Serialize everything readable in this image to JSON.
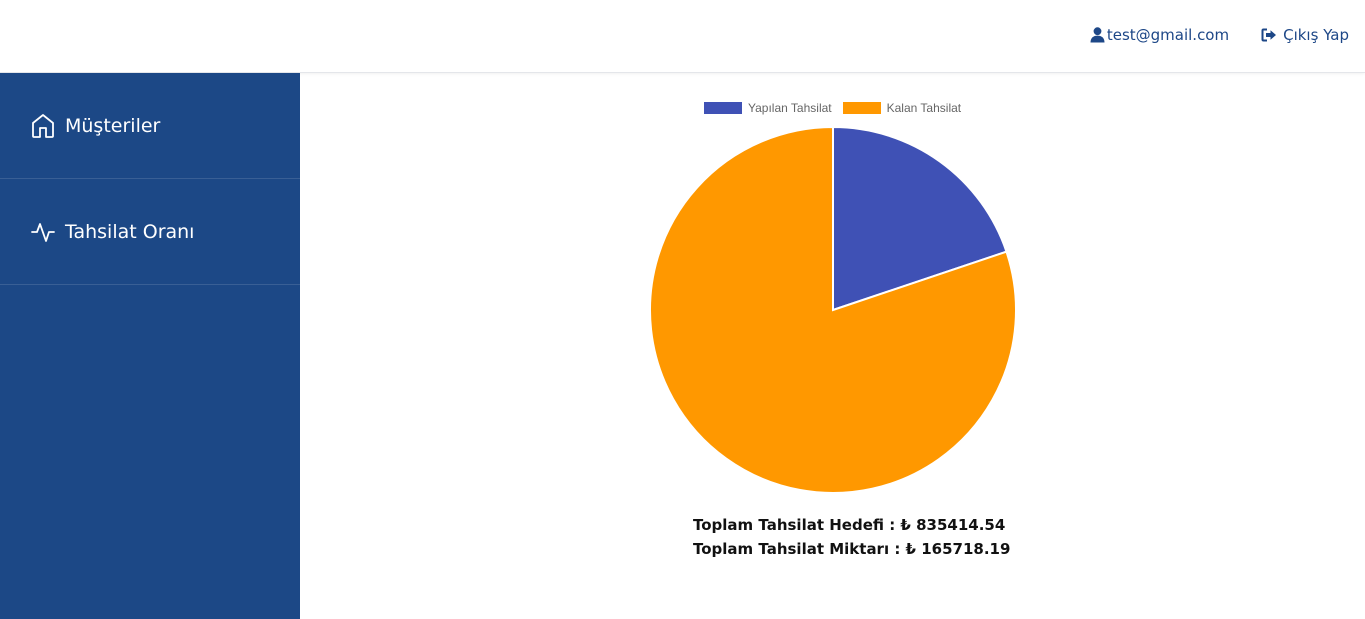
{
  "header": {
    "user_email": "test@gmail.com",
    "logout_label": "Çıkış Yap",
    "user_icon": "user-icon",
    "logout_icon": "sign-out-icon"
  },
  "sidebar": {
    "items": [
      {
        "label": "Müşteriler",
        "icon": "home-icon"
      },
      {
        "label": "Tahsilat Oranı",
        "icon": "activity-icon"
      }
    ]
  },
  "summary": {
    "target_line": "Toplam Tahsilat Hedefi : ₺ 835414.54",
    "collected_line": "Toplam Tahsilat Miktarı : ₺ 165718.19"
  },
  "colors": {
    "sidebar_bg": "#1c4886",
    "link": "#1d4787",
    "collected": "#3f51b5",
    "remaining": "#ff9800"
  },
  "chart_data": {
    "type": "pie",
    "categories": [
      "Yapılan Tahsilat",
      "Kalan Tahsilat"
    ],
    "values": [
      165718.19,
      669696.35
    ],
    "colors": [
      "#3f51b5",
      "#ff9800"
    ],
    "legend": "top"
  }
}
